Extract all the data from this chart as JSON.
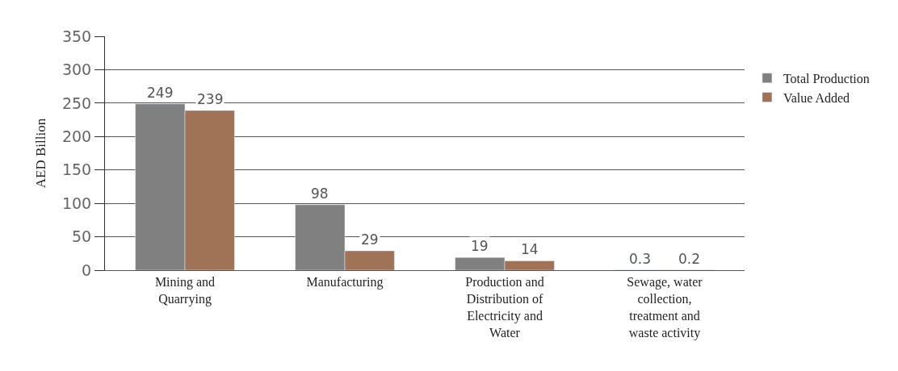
{
  "chart_data": {
    "type": "bar",
    "ylabel": "AED Billion",
    "categories": [
      "Mining and Quarrying",
      "Manufacturing",
      "Production and Distribution of Electricity and Water",
      "Sewage, water collection, treatment and waste activity"
    ],
    "series": [
      {
        "name": "Total Production",
        "color": "#808080",
        "values": [
          249,
          98,
          19,
          0.3
        ]
      },
      {
        "name": "Value Added",
        "color": "#a07256",
        "values": [
          239,
          29,
          14,
          0.2
        ]
      }
    ],
    "ylim": [
      0,
      350
    ],
    "yticks": [
      0,
      50,
      100,
      150,
      200,
      250,
      300,
      350
    ],
    "grid": "y",
    "legend": "right",
    "data_labels": true
  }
}
